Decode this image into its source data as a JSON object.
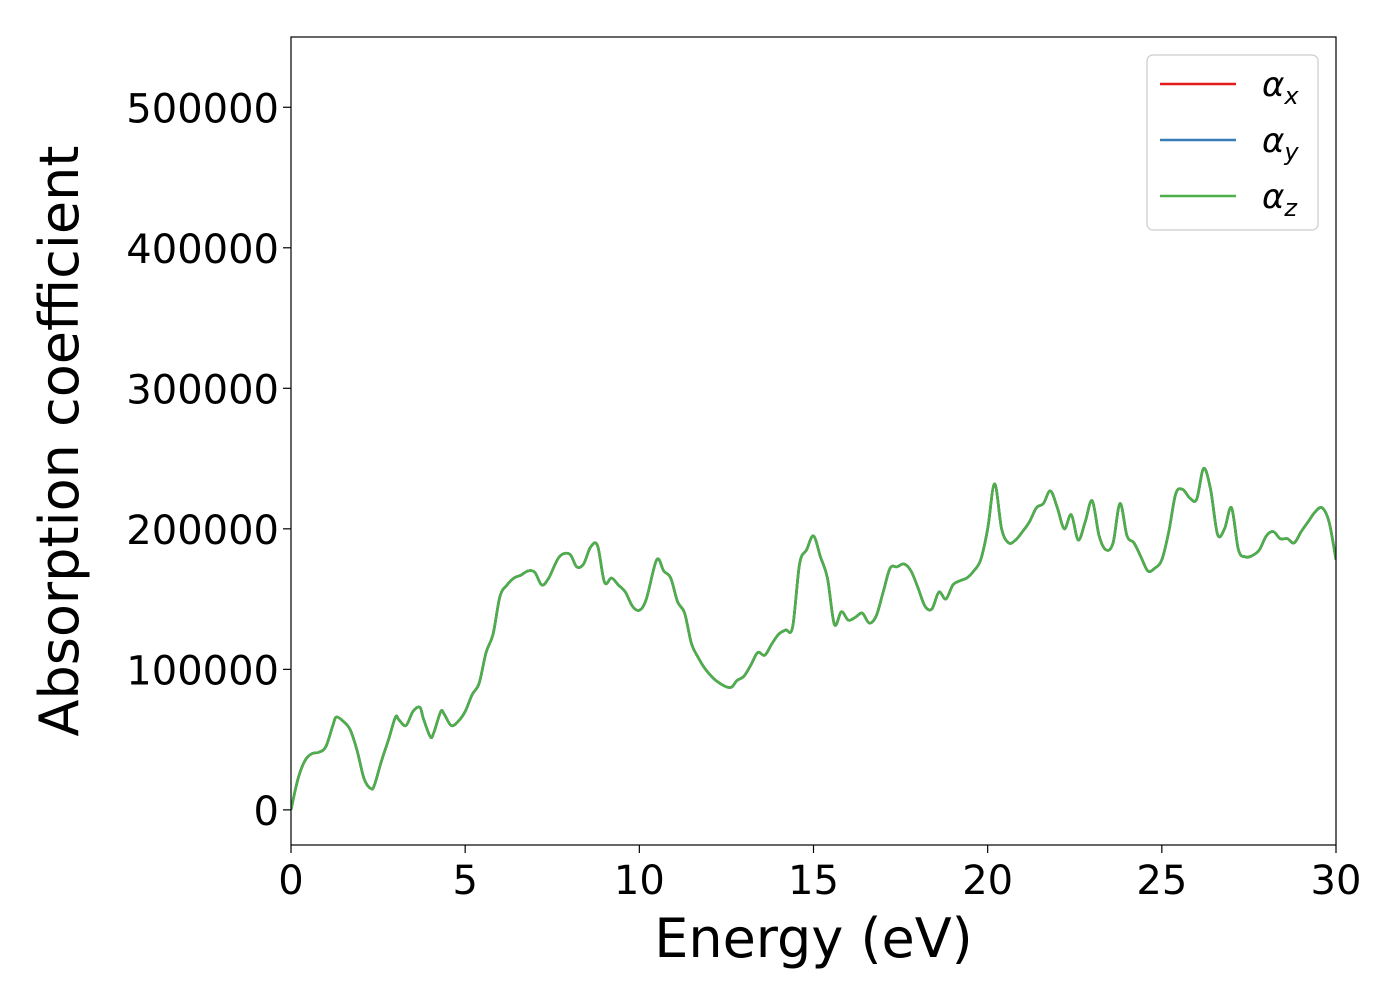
{
  "chart_data": {
    "type": "line",
    "xlabel": "Energy (eV)",
    "ylabel": "Absorption coefficient",
    "xlim": [
      0,
      30
    ],
    "ylim": [
      -25000,
      550000
    ],
    "xticks": [
      0,
      5,
      10,
      15,
      20,
      25,
      30
    ],
    "yticks": [
      0,
      100000,
      200000,
      300000,
      400000,
      500000
    ],
    "legend_position": "top-right",
    "grid": false,
    "x": [
      0,
      0.2,
      0.4,
      0.6,
      0.8,
      1.0,
      1.2,
      1.3,
      1.5,
      1.7,
      1.9,
      2.1,
      2.3,
      2.4,
      2.6,
      2.8,
      3.0,
      3.1,
      3.3,
      3.5,
      3.7,
      3.8,
      4.0,
      4.1,
      4.3,
      4.4,
      4.6,
      4.8,
      5.0,
      5.2,
      5.4,
      5.6,
      5.8,
      6.0,
      6.2,
      6.4,
      6.6,
      6.8,
      7.0,
      7.2,
      7.4,
      7.7,
      8.0,
      8.2,
      8.4,
      8.6,
      8.8,
      9.0,
      9.2,
      9.4,
      9.6,
      9.8,
      10.0,
      10.2,
      10.5,
      10.7,
      10.9,
      11.1,
      11.3,
      11.5,
      11.7,
      11.9,
      12.2,
      12.6,
      12.8,
      13.0,
      13.2,
      13.4,
      13.6,
      13.8,
      14.0,
      14.2,
      14.4,
      14.6,
      14.8,
      15.0,
      15.2,
      15.4,
      15.6,
      15.8,
      16.0,
      16.2,
      16.4,
      16.6,
      16.8,
      17.0,
      17.2,
      17.4,
      17.6,
      17.8,
      18.0,
      18.2,
      18.4,
      18.6,
      18.8,
      19.0,
      19.2,
      19.4,
      19.6,
      19.8,
      20.0,
      20.2,
      20.4,
      20.6,
      20.8,
      21.0,
      21.2,
      21.4,
      21.6,
      21.8,
      22.0,
      22.2,
      22.4,
      22.6,
      22.8,
      23.0,
      23.2,
      23.4,
      23.6,
      23.8,
      24.0,
      24.2,
      24.4,
      24.6,
      24.8,
      25.0,
      25.2,
      25.4,
      25.6,
      25.8,
      26.0,
      26.2,
      26.4,
      26.6,
      26.8,
      27.0,
      27.2,
      27.4,
      27.6,
      27.8,
      28.0,
      28.2,
      28.4,
      28.6,
      28.8,
      29.0,
      29.2,
      29.4,
      29.6,
      29.8,
      30.0
    ],
    "series": [
      {
        "name": "α_x",
        "color": "#e41a1c",
        "values": [
          0,
          22000,
          35000,
          40000,
          41000,
          45000,
          60000,
          66000,
          63000,
          57000,
          42000,
          22000,
          15000,
          18000,
          35000,
          50000,
          66000,
          64000,
          60000,
          70000,
          73000,
          65000,
          52000,
          55000,
          70000,
          68000,
          60000,
          63000,
          70000,
          82000,
          90000,
          112000,
          125000,
          152000,
          160000,
          165000,
          167000,
          170000,
          169000,
          160000,
          165000,
          180000,
          182000,
          173000,
          175000,
          187000,
          188000,
          162000,
          165000,
          160000,
          155000,
          145000,
          142000,
          150000,
          178000,
          170000,
          165000,
          148000,
          140000,
          118000,
          108000,
          100000,
          92000,
          87000,
          92000,
          95000,
          103000,
          112000,
          110000,
          118000,
          125000,
          128000,
          130000,
          175000,
          185000,
          195000,
          180000,
          165000,
          132000,
          141000,
          135000,
          137000,
          140000,
          133000,
          138000,
          155000,
          172000,
          173000,
          175000,
          170000,
          158000,
          145000,
          143000,
          155000,
          150000,
          160000,
          163000,
          165000,
          170000,
          178000,
          200000,
          232000,
          200000,
          190000,
          192000,
          198000,
          205000,
          215000,
          218000,
          227000,
          215000,
          200000,
          210000,
          192000,
          205000,
          220000,
          195000,
          185000,
          190000,
          218000,
          195000,
          190000,
          180000,
          170000,
          172000,
          178000,
          198000,
          225000,
          228000,
          222000,
          221000,
          243000,
          228000,
          196000,
          200000,
          215000,
          185000,
          180000,
          181000,
          185000,
          195000,
          198000,
          193000,
          193000,
          190000,
          198000,
          205000,
          212000,
          215000,
          205000,
          178000
        ]
      },
      {
        "name": "α_y",
        "color": "#377eb8",
        "values": [
          0,
          22000,
          35000,
          40000,
          41000,
          45000,
          60000,
          66000,
          63000,
          57000,
          42000,
          22000,
          15000,
          18000,
          35000,
          50000,
          66000,
          64000,
          60000,
          70000,
          73000,
          65000,
          52000,
          55000,
          70000,
          68000,
          60000,
          63000,
          70000,
          82000,
          90000,
          112000,
          125000,
          152000,
          160000,
          165000,
          167000,
          170000,
          169000,
          160000,
          165000,
          180000,
          182000,
          173000,
          175000,
          187000,
          188000,
          162000,
          165000,
          160000,
          155000,
          145000,
          142000,
          150000,
          178000,
          170000,
          165000,
          148000,
          140000,
          118000,
          108000,
          100000,
          92000,
          87000,
          92000,
          95000,
          103000,
          112000,
          110000,
          118000,
          125000,
          128000,
          130000,
          175000,
          185000,
          195000,
          180000,
          165000,
          132000,
          141000,
          135000,
          137000,
          140000,
          133000,
          138000,
          155000,
          172000,
          173000,
          175000,
          170000,
          158000,
          145000,
          143000,
          155000,
          150000,
          160000,
          163000,
          165000,
          170000,
          178000,
          200000,
          232000,
          200000,
          190000,
          192000,
          198000,
          205000,
          215000,
          218000,
          227000,
          215000,
          200000,
          210000,
          192000,
          205000,
          220000,
          195000,
          185000,
          190000,
          218000,
          195000,
          190000,
          180000,
          170000,
          172000,
          178000,
          198000,
          225000,
          228000,
          222000,
          221000,
          243000,
          228000,
          196000,
          200000,
          215000,
          185000,
          180000,
          181000,
          185000,
          195000,
          198000,
          193000,
          193000,
          190000,
          198000,
          205000,
          212000,
          215000,
          205000,
          178000
        ]
      },
      {
        "name": "α_z",
        "color": "#4daf4a",
        "values": [
          0,
          22000,
          35000,
          40000,
          41000,
          45000,
          60000,
          66000,
          63000,
          57000,
          42000,
          22000,
          15000,
          18000,
          35000,
          50000,
          66000,
          64000,
          60000,
          70000,
          73000,
          65000,
          52000,
          55000,
          70000,
          68000,
          60000,
          63000,
          70000,
          82000,
          90000,
          112000,
          125000,
          152000,
          160000,
          165000,
          167000,
          170000,
          169000,
          160000,
          165000,
          180000,
          182000,
          173000,
          175000,
          187000,
          188000,
          162000,
          165000,
          160000,
          155000,
          145000,
          142000,
          150000,
          178000,
          170000,
          165000,
          148000,
          140000,
          118000,
          108000,
          100000,
          92000,
          87000,
          92000,
          95000,
          103000,
          112000,
          110000,
          118000,
          125000,
          128000,
          130000,
          175000,
          185000,
          195000,
          180000,
          165000,
          132000,
          141000,
          135000,
          137000,
          140000,
          133000,
          138000,
          155000,
          172000,
          173000,
          175000,
          170000,
          158000,
          145000,
          143000,
          155000,
          150000,
          160000,
          163000,
          165000,
          170000,
          178000,
          200000,
          232000,
          200000,
          190000,
          192000,
          198000,
          205000,
          215000,
          218000,
          227000,
          215000,
          200000,
          210000,
          192000,
          205000,
          220000,
          195000,
          185000,
          190000,
          218000,
          195000,
          190000,
          180000,
          170000,
          172000,
          178000,
          198000,
          225000,
          228000,
          222000,
          221000,
          243000,
          228000,
          196000,
          200000,
          215000,
          185000,
          180000,
          181000,
          185000,
          195000,
          198000,
          193000,
          193000,
          190000,
          198000,
          205000,
          212000,
          215000,
          205000,
          178000
        ]
      }
    ],
    "legend": [
      {
        "symbol": "α",
        "sub": "x",
        "color": "#e41a1c"
      },
      {
        "symbol": "α",
        "sub": "y",
        "color": "#377eb8"
      },
      {
        "symbol": "α",
        "sub": "z",
        "color": "#4daf4a"
      }
    ]
  }
}
